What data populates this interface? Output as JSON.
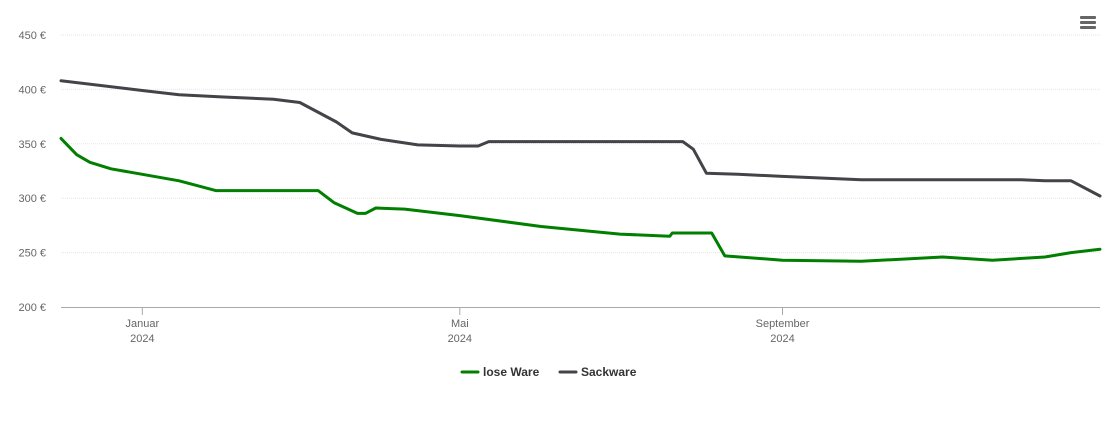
{
  "menu": {
    "icon": "hamburger-menu-icon"
  },
  "chart_data": {
    "type": "line",
    "y_unit": "€",
    "yticks": [
      "450 €",
      "400 €",
      "350 €",
      "300 €",
      "250 €",
      "200 €"
    ],
    "ylim": [
      200,
      450
    ],
    "xlim": [
      "2023-12-01",
      "2024-12-31"
    ],
    "xticks": [
      {
        "date": "2024-01-01",
        "month": "Januar",
        "year": "2024"
      },
      {
        "date": "2024-05-01",
        "month": "Mai",
        "year": "2024"
      },
      {
        "date": "2024-09-01",
        "month": "September",
        "year": "2024"
      }
    ],
    "grid": true,
    "legend_position": "bottom",
    "series": [
      {
        "name": "lose Ware",
        "color": "#007f00",
        "points": [
          [
            "2023-12-01",
            355
          ],
          [
            "2023-12-07",
            340
          ],
          [
            "2023-12-12",
            333
          ],
          [
            "2023-12-20",
            327
          ],
          [
            "2024-01-01",
            322
          ],
          [
            "2024-01-15",
            316
          ],
          [
            "2024-01-29",
            307
          ],
          [
            "2024-02-15",
            307
          ],
          [
            "2024-03-01",
            307
          ],
          [
            "2024-03-08",
            307
          ],
          [
            "2024-03-14",
            296
          ],
          [
            "2024-03-23",
            286
          ],
          [
            "2024-03-26",
            286
          ],
          [
            "2024-03-30",
            291
          ],
          [
            "2024-04-10",
            290
          ],
          [
            "2024-05-01",
            284
          ],
          [
            "2024-06-01",
            274
          ],
          [
            "2024-07-01",
            267
          ],
          [
            "2024-07-20",
            265
          ],
          [
            "2024-07-21",
            268
          ],
          [
            "2024-08-05",
            268
          ],
          [
            "2024-08-10",
            247
          ],
          [
            "2024-09-01",
            243
          ],
          [
            "2024-10-01",
            242
          ],
          [
            "2024-11-01",
            246
          ],
          [
            "2024-11-20",
            243
          ],
          [
            "2024-12-10",
            246
          ],
          [
            "2024-12-20",
            250
          ],
          [
            "2024-12-31",
            253
          ]
        ]
      },
      {
        "name": "Sackware",
        "color": "#434348",
        "points": [
          [
            "2023-12-01",
            408
          ],
          [
            "2024-01-01",
            399
          ],
          [
            "2024-01-15",
            395
          ],
          [
            "2024-02-01",
            393
          ],
          [
            "2024-02-20",
            391
          ],
          [
            "2024-03-01",
            388
          ],
          [
            "2024-03-15",
            370
          ],
          [
            "2024-03-21",
            360
          ],
          [
            "2024-04-01",
            354
          ],
          [
            "2024-04-15",
            349
          ],
          [
            "2024-05-01",
            348
          ],
          [
            "2024-05-08",
            348
          ],
          [
            "2024-05-12",
            352
          ],
          [
            "2024-06-01",
            352
          ],
          [
            "2024-07-01",
            352
          ],
          [
            "2024-07-25",
            352
          ],
          [
            "2024-07-29",
            345
          ],
          [
            "2024-08-03",
            323
          ],
          [
            "2024-08-15",
            322
          ],
          [
            "2024-09-01",
            320
          ],
          [
            "2024-10-01",
            317
          ],
          [
            "2024-11-01",
            317
          ],
          [
            "2024-12-01",
            317
          ],
          [
            "2024-12-10",
            316
          ],
          [
            "2024-12-20",
            316
          ],
          [
            "2024-12-31",
            302
          ]
        ]
      }
    ]
  }
}
